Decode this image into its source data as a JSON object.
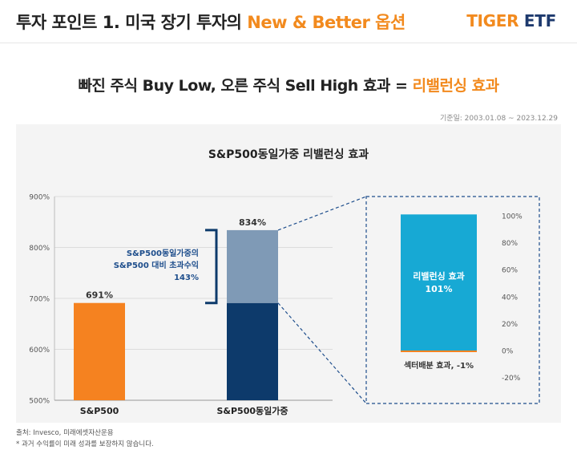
{
  "header": {
    "title_main": "투자 포인트 1. 미국 장기 투자의 ",
    "title_accent": "New & Better 옵션",
    "logo_tiger": "TIGER",
    "logo_etf": " ETF"
  },
  "headline": {
    "main": "빠진 주식 Buy Low, 오른 주식 Sell High 효과 = ",
    "accent": "리밸런싱 효과"
  },
  "date_note": "기준일: 2003.01.08 ~ 2023.12.29",
  "chart_data": [
    {
      "type": "bar",
      "title": "S&P500동일가중 리밸런싱 효과",
      "categories": [
        "S&P500",
        "S&P500동일가중"
      ],
      "values": [
        691,
        834
      ],
      "value_labels": [
        "691%",
        "834%"
      ],
      "ylim": [
        500,
        900
      ],
      "yticks": [
        500,
        600,
        700,
        800,
        900
      ],
      "ytick_labels": [
        "500%",
        "600%",
        "700%",
        "800%",
        "900%"
      ],
      "stack_split": 691,
      "annotation": [
        "S&P500동일가중의",
        "S&P500 대비 초과수익",
        "143%"
      ],
      "colors": {
        "sp500": "#f58220",
        "equal_base": "#0d3a6b",
        "equal_excess": "#7f9ab6"
      }
    },
    {
      "type": "bar",
      "categories": [
        "리밸런싱 효과",
        "섹터배분 효과"
      ],
      "values": [
        101,
        -1
      ],
      "bar_label_lines": [
        "리밸런싱 효과",
        "101%"
      ],
      "x_label": "섹터배분 효과, -1%",
      "ylim": [
        -20,
        100
      ],
      "yticks": [
        -20,
        0,
        20,
        40,
        60,
        80,
        100
      ],
      "ytick_labels": [
        "-20%",
        "0%",
        "20%",
        "40%",
        "60%",
        "80%",
        "100%"
      ],
      "colors": {
        "rebalance": "#17a9d4",
        "sector": "#f58220"
      }
    }
  ],
  "footnotes": {
    "source": "출처: Invesco, 미래에셋자산운용",
    "disclaimer": "* 과거 수익률이 미래 성과를 보장하지 않습니다."
  }
}
